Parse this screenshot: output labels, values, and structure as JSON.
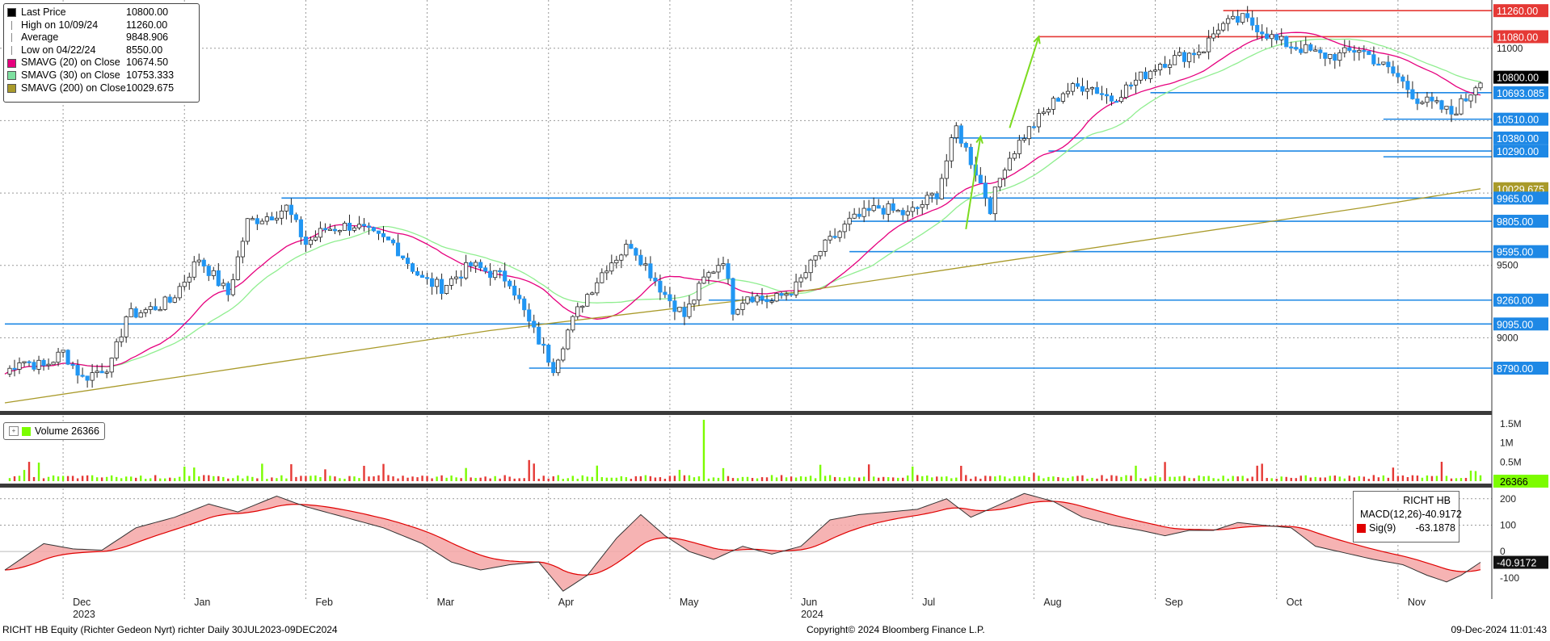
{
  "legend": [
    {
      "name": "Last Price",
      "value": "10800.00",
      "color": "#000000",
      "icon": "square"
    },
    {
      "name": "High on 10/09/24",
      "value": "11260.00",
      "color": "#888888",
      "icon": "high-marker"
    },
    {
      "name": "Average",
      "value": "9848.906",
      "color": "#888888",
      "icon": "average-marker"
    },
    {
      "name": "Low on 04/22/24",
      "value": "8550.00",
      "color": "#888888",
      "icon": "low-marker"
    },
    {
      "name": "SMAVG (20)  on Close",
      "value": "10674.50",
      "color": "#e6007e",
      "icon": "square"
    },
    {
      "name": "SMAVG (30)  on Close",
      "value": "10753.333",
      "color": "#7ee0a0",
      "icon": "square"
    },
    {
      "name": "SMAVG (200)  on Close",
      "value": "10029.675",
      "color": "#a99a2a",
      "icon": "square"
    }
  ],
  "volume_label": "Volume 26366",
  "macd_panel": {
    "title": "RICHT HB",
    "rows": [
      {
        "name": "MACD(12,26)",
        "value": "-40.9172",
        "color": "#000000"
      },
      {
        "name": "Sig(9)",
        "value": "-63.1878",
        "color": "#e00000"
      }
    ]
  },
  "footer": {
    "left": "RICHT HB Equity (Richter Gedeon Nyrt) richter  Daily 30JUL2023-09DEC2024",
    "center": "Copyright© 2024 Bloomberg Finance L.P.",
    "right": "09-Dec-2024 11:01:43"
  },
  "colors": {
    "up": "#2196f3",
    "down": "#2196f3",
    "level_line": "#1e88e5",
    "resistance": "#e53935",
    "sma20": "#e6007e",
    "sma30": "#90ee90",
    "sma200": "#a99a2a",
    "vol_up": "#7cfc00",
    "vol_down": "#e53935",
    "macd_fill": "#f4a6a6",
    "arrow": "#7cdb1f"
  },
  "chart_data": [
    {
      "type": "candlestick",
      "title": "",
      "y_ticks": [
        9000,
        9500,
        11000
      ],
      "ylim": [
        8500,
        11300
      ],
      "price_labels": [
        {
          "value": 11260.0,
          "label": "11260.00",
          "color": "#e53935"
        },
        {
          "value": 11080.0,
          "label": "11080.00",
          "color": "#e53935"
        },
        {
          "value": 10800.0,
          "label": "10800.00",
          "color": "#000000"
        },
        {
          "value": 10693.085,
          "label": "10693.085",
          "color": "#1e88e5"
        },
        {
          "value": 10510.0,
          "label": "10510.00",
          "color": "#1e88e5"
        },
        {
          "value": 10380.0,
          "label": "10380.00",
          "color": "#1e88e5"
        },
        {
          "value": 10290.0,
          "label": "10290.00",
          "color": "#1e88e5"
        },
        {
          "value": 10029.675,
          "label": "10029.675",
          "color": "#a99a2a"
        },
        {
          "value": 9965.0,
          "label": "9965.00",
          "color": "#1e88e5"
        },
        {
          "value": 9805.0,
          "label": "9805.00",
          "color": "#1e88e5"
        },
        {
          "value": 9595.0,
          "label": "9595.00",
          "color": "#1e88e5"
        },
        {
          "value": 9260.0,
          "label": "9260.00",
          "color": "#1e88e5"
        },
        {
          "value": 9095.0,
          "label": "9095.00",
          "color": "#1e88e5"
        },
        {
          "value": 8790.0,
          "label": "8790.00",
          "color": "#1e88e5"
        }
      ],
      "x_months": [
        {
          "label": "Dec",
          "sub": "2023",
          "day": 12
        },
        {
          "label": "Jan",
          "sub": "",
          "day": 37
        },
        {
          "label": "Feb",
          "sub": "",
          "day": 62
        },
        {
          "label": "Mar",
          "sub": "",
          "day": 87
        },
        {
          "label": "Apr",
          "sub": "",
          "day": 112
        },
        {
          "label": "May",
          "sub": "",
          "day": 137
        },
        {
          "label": "Jun",
          "sub": "2024",
          "day": 162
        },
        {
          "label": "Jul",
          "sub": "",
          "day": 187
        },
        {
          "label": "Aug",
          "sub": "",
          "day": 212
        },
        {
          "label": "Sep",
          "sub": "",
          "day": 237
        },
        {
          "label": "Oct",
          "sub": "",
          "day": 262
        },
        {
          "label": "Nov",
          "sub": "",
          "day": 287
        }
      ],
      "close_anchors": [
        [
          0,
          8750
        ],
        [
          3,
          8850
        ],
        [
          8,
          8800
        ],
        [
          12,
          8900
        ],
        [
          16,
          8720
        ],
        [
          22,
          8820
        ],
        [
          25,
          9150
        ],
        [
          30,
          9200
        ],
        [
          34,
          9250
        ],
        [
          40,
          9550
        ],
        [
          46,
          9300
        ],
        [
          50,
          9800
        ],
        [
          55,
          9850
        ],
        [
          58,
          9900
        ],
        [
          62,
          9650
        ],
        [
          66,
          9750
        ],
        [
          72,
          9780
        ],
        [
          76,
          9700
        ],
        [
          80,
          9650
        ],
        [
          86,
          9400
        ],
        [
          90,
          9350
        ],
        [
          96,
          9500
        ],
        [
          100,
          9450
        ],
        [
          104,
          9400
        ],
        [
          108,
          9100
        ],
        [
          113,
          8800
        ],
        [
          116,
          9050
        ],
        [
          119,
          9250
        ],
        [
          124,
          9500
        ],
        [
          129,
          9650
        ],
        [
          132,
          9500
        ],
        [
          136,
          9300
        ],
        [
          140,
          9150
        ],
        [
          144,
          9400
        ],
        [
          148,
          9550
        ],
        [
          150,
          9200
        ],
        [
          153,
          9300
        ],
        [
          158,
          9250
        ],
        [
          163,
          9350
        ],
        [
          168,
          9600
        ],
        [
          174,
          9800
        ],
        [
          180,
          9900
        ],
        [
          186,
          9850
        ],
        [
          192,
          10000
        ],
        [
          196,
          10450
        ],
        [
          200,
          10150
        ],
        [
          203,
          9900
        ],
        [
          206,
          10200
        ],
        [
          210,
          10400
        ],
        [
          214,
          10550
        ],
        [
          218,
          10700
        ],
        [
          223,
          10750
        ],
        [
          228,
          10650
        ],
        [
          234,
          10800
        ],
        [
          238,
          10900
        ],
        [
          243,
          10950
        ],
        [
          247,
          11000
        ],
        [
          250,
          11150
        ],
        [
          255,
          11200
        ],
        [
          258,
          11150
        ],
        [
          262,
          11050
        ],
        [
          267,
          11000
        ],
        [
          271,
          10950
        ],
        [
          275,
          10950
        ],
        [
          279,
          11000
        ],
        [
          283,
          10900
        ],
        [
          287,
          10800
        ],
        [
          291,
          10650
        ],
        [
          295,
          10600
        ],
        [
          298,
          10550
        ],
        [
          301,
          10650
        ],
        [
          304,
          10800
        ]
      ],
      "n_days": 304,
      "levels": [
        {
          "value": 11260,
          "from_day": 251,
          "color": "#e53935"
        },
        {
          "value": 11080,
          "from_day": 213,
          "color": "#e53935"
        },
        {
          "value": 10693.085,
          "from_day": 236,
          "color": "#1e88e5"
        },
        {
          "value": 10510,
          "from_day": 284,
          "color": "#1e88e5"
        },
        {
          "value": 10380,
          "from_day": 195,
          "color": "#1e88e5"
        },
        {
          "value": 10290,
          "from_day": 215,
          "color": "#1e88e5"
        },
        {
          "value": 10250,
          "from_day": 284,
          "color": "#1e88e5"
        },
        {
          "value": 9965,
          "from_day": 57,
          "color": "#1e88e5"
        },
        {
          "value": 9805,
          "from_day": 174,
          "color": "#1e88e5"
        },
        {
          "value": 9595,
          "from_day": 174,
          "color": "#1e88e5"
        },
        {
          "value": 9260,
          "from_day": 145,
          "color": "#1e88e5"
        },
        {
          "value": 9095,
          "from_day": 0,
          "color": "#1e88e5"
        },
        {
          "value": 8790,
          "from_day": 108,
          "color": "#1e88e5"
        }
      ],
      "arrows": [
        {
          "from": [
            207,
            10450
          ],
          "to": [
            213,
            11080
          ]
        },
        {
          "from": [
            198,
            9750
          ],
          "to": [
            201,
            10390
          ]
        }
      ],
      "sma200": [
        [
          0,
          8550
        ],
        [
          50,
          8800
        ],
        [
          100,
          9050
        ],
        [
          150,
          9250
        ],
        [
          200,
          9500
        ],
        [
          240,
          9700
        ],
        [
          280,
          9900
        ],
        [
          304,
          10029.675
        ]
      ]
    },
    {
      "type": "bar",
      "title": "Volume",
      "y_ticks": [
        "0.5M",
        "1M",
        "1.5M"
      ],
      "ylim": [
        0,
        1600000
      ],
      "last_label": "26366",
      "spike_day": 144,
      "spike_value": 1600000
    },
    {
      "type": "line",
      "title": "MACD",
      "y_ticks": [
        200,
        100,
        0,
        -100
      ],
      "ylim": [
        -180,
        230
      ],
      "last_label": "-40.9172",
      "macd_anchors": [
        [
          0,
          -70
        ],
        [
          8,
          30
        ],
        [
          14,
          10
        ],
        [
          20,
          5
        ],
        [
          27,
          90
        ],
        [
          35,
          130
        ],
        [
          42,
          180
        ],
        [
          48,
          150
        ],
        [
          56,
          210
        ],
        [
          62,
          170
        ],
        [
          70,
          130
        ],
        [
          78,
          90
        ],
        [
          86,
          30
        ],
        [
          92,
          -40
        ],
        [
          98,
          -70
        ],
        [
          104,
          -50
        ],
        [
          110,
          -40
        ],
        [
          115,
          -150
        ],
        [
          120,
          -90
        ],
        [
          126,
          50
        ],
        [
          131,
          140
        ],
        [
          136,
          60
        ],
        [
          141,
          0
        ],
        [
          146,
          -30
        ],
        [
          152,
          20
        ],
        [
          158,
          -10
        ],
        [
          164,
          20
        ],
        [
          170,
          120
        ],
        [
          176,
          140
        ],
        [
          182,
          150
        ],
        [
          188,
          160
        ],
        [
          194,
          200
        ],
        [
          199,
          130
        ],
        [
          204,
          170
        ],
        [
          210,
          220
        ],
        [
          216,
          190
        ],
        [
          222,
          130
        ],
        [
          228,
          100
        ],
        [
          234,
          80
        ],
        [
          239,
          60
        ],
        [
          244,
          80
        ],
        [
          249,
          80
        ],
        [
          254,
          110
        ],
        [
          259,
          100
        ],
        [
          265,
          90
        ],
        [
          270,
          20
        ],
        [
          276,
          -5
        ],
        [
          282,
          -30
        ],
        [
          288,
          -50
        ],
        [
          293,
          -90
        ],
        [
          297,
          -115
        ],
        [
          300,
          -90
        ],
        [
          304,
          -40.9
        ]
      ]
    }
  ]
}
